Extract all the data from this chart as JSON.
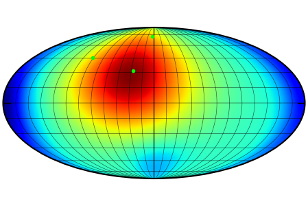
{
  "background_color": "#ffffff",
  "colormap": "jet",
  "grid_color": "#000000",
  "grid_alpha": 0.65,
  "grid_linewidth": 0.45,
  "ellipse_edge_color": "#000000",
  "ellipse_linewidth": 1.5,
  "green_dots": [
    {
      "lon_deg": -5,
      "lat_deg": 72
    },
    {
      "lon_deg": -92,
      "lat_deg": 46
    },
    {
      "lon_deg": -28,
      "lat_deg": 32
    }
  ],
  "green_dot_color": "#00ff00",
  "green_dot_size": 4,
  "fig_width": 4.49,
  "fig_height": 3.0,
  "dpi": 100,
  "n_grid_lon": 24,
  "n_grid_lat": 12,
  "axis_color": "#000000",
  "axis_linewidth": 0.9
}
